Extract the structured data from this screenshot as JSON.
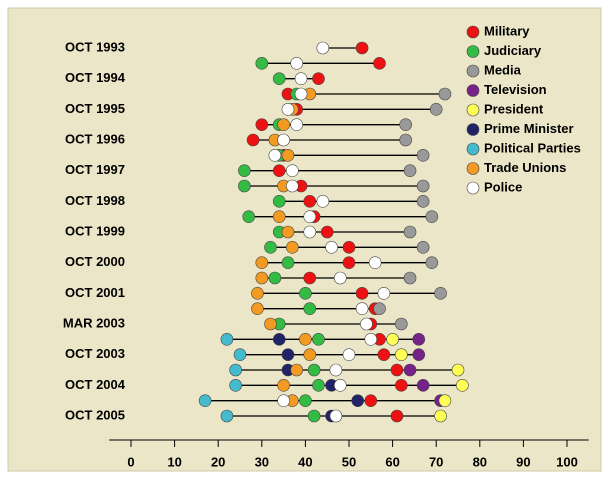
{
  "chart_data": {
    "type": "dot",
    "categories": [
      "OCT 1993",
      null,
      "OCT 1994",
      null,
      "OCT 1995",
      null,
      "OCT 1996",
      null,
      "OCT 1997",
      null,
      "OCT 1998",
      null,
      "OCT 1999",
      null,
      "OCT 2000",
      null,
      "OCT 2001",
      null,
      "MAR 2003",
      null,
      "OCT 2003",
      null,
      "OCT 2004",
      null,
      "OCT 2005"
    ],
    "series": [
      {
        "name": "Military",
        "color": "#ee1111",
        "values": [
          53,
          57,
          43,
          36,
          38,
          30,
          28,
          35,
          34,
          39,
          41,
          42,
          45,
          50,
          50,
          41,
          53,
          56,
          55,
          57,
          58,
          61,
          62,
          55,
          61
        ]
      },
      {
        "name": "Judiciary",
        "color": "#33bb44",
        "values": [
          null,
          30,
          34,
          38,
          null,
          34,
          null,
          34,
          26,
          26,
          34,
          27,
          34,
          32,
          36,
          33,
          40,
          41,
          34,
          43,
          null,
          42,
          43,
          40,
          42
        ]
      },
      {
        "name": "Media",
        "color": "#999999",
        "values": [
          null,
          null,
          null,
          72,
          70,
          63,
          63,
          67,
          64,
          67,
          67,
          69,
          64,
          67,
          69,
          64,
          71,
          57,
          62,
          null,
          null,
          null,
          null,
          null,
          null
        ]
      },
      {
        "name": "Television",
        "color": "#772288",
        "values": [
          null,
          null,
          null,
          null,
          null,
          null,
          null,
          null,
          null,
          null,
          null,
          null,
          null,
          null,
          null,
          null,
          null,
          null,
          null,
          66,
          66,
          64,
          67,
          71,
          null
        ]
      },
      {
        "name": "President",
        "color": "#ffff55",
        "values": [
          null,
          null,
          null,
          null,
          null,
          null,
          null,
          null,
          null,
          null,
          null,
          null,
          null,
          null,
          null,
          null,
          null,
          null,
          null,
          60,
          62,
          75,
          76,
          72,
          71
        ]
      },
      {
        "name": "Prime Minister",
        "color": "#222266",
        "values": [
          null,
          null,
          null,
          null,
          null,
          null,
          null,
          null,
          null,
          null,
          null,
          null,
          null,
          null,
          null,
          null,
          null,
          null,
          null,
          34,
          36,
          36,
          46,
          52,
          46
        ]
      },
      {
        "name": "Political Parties",
        "color": "#44bbcc",
        "values": [
          null,
          null,
          null,
          null,
          null,
          null,
          null,
          null,
          null,
          null,
          null,
          null,
          null,
          null,
          null,
          null,
          null,
          null,
          null,
          22,
          25,
          24,
          24,
          17,
          22
        ]
      },
      {
        "name": "Trade Unions",
        "color": "#f39a22",
        "values": [
          null,
          null,
          null,
          41,
          37,
          35,
          33,
          36,
          null,
          35,
          null,
          34,
          36,
          37,
          30,
          30,
          29,
          29,
          32,
          40,
          41,
          38,
          35,
          37,
          null
        ]
      },
      {
        "name": "Police",
        "color": "#ffffff",
        "values": [
          44,
          38,
          39,
          39,
          36,
          38,
          35,
          33,
          37,
          37,
          44,
          41,
          41,
          46,
          56,
          48,
          58,
          53,
          54,
          55,
          50,
          47,
          48,
          35,
          47
        ]
      }
    ],
    "xlim": [
      -5,
      105
    ],
    "xticks": [
      0,
      10,
      20,
      30,
      40,
      50,
      60,
      70,
      80,
      90,
      100
    ],
    "legend": "top-right"
  }
}
